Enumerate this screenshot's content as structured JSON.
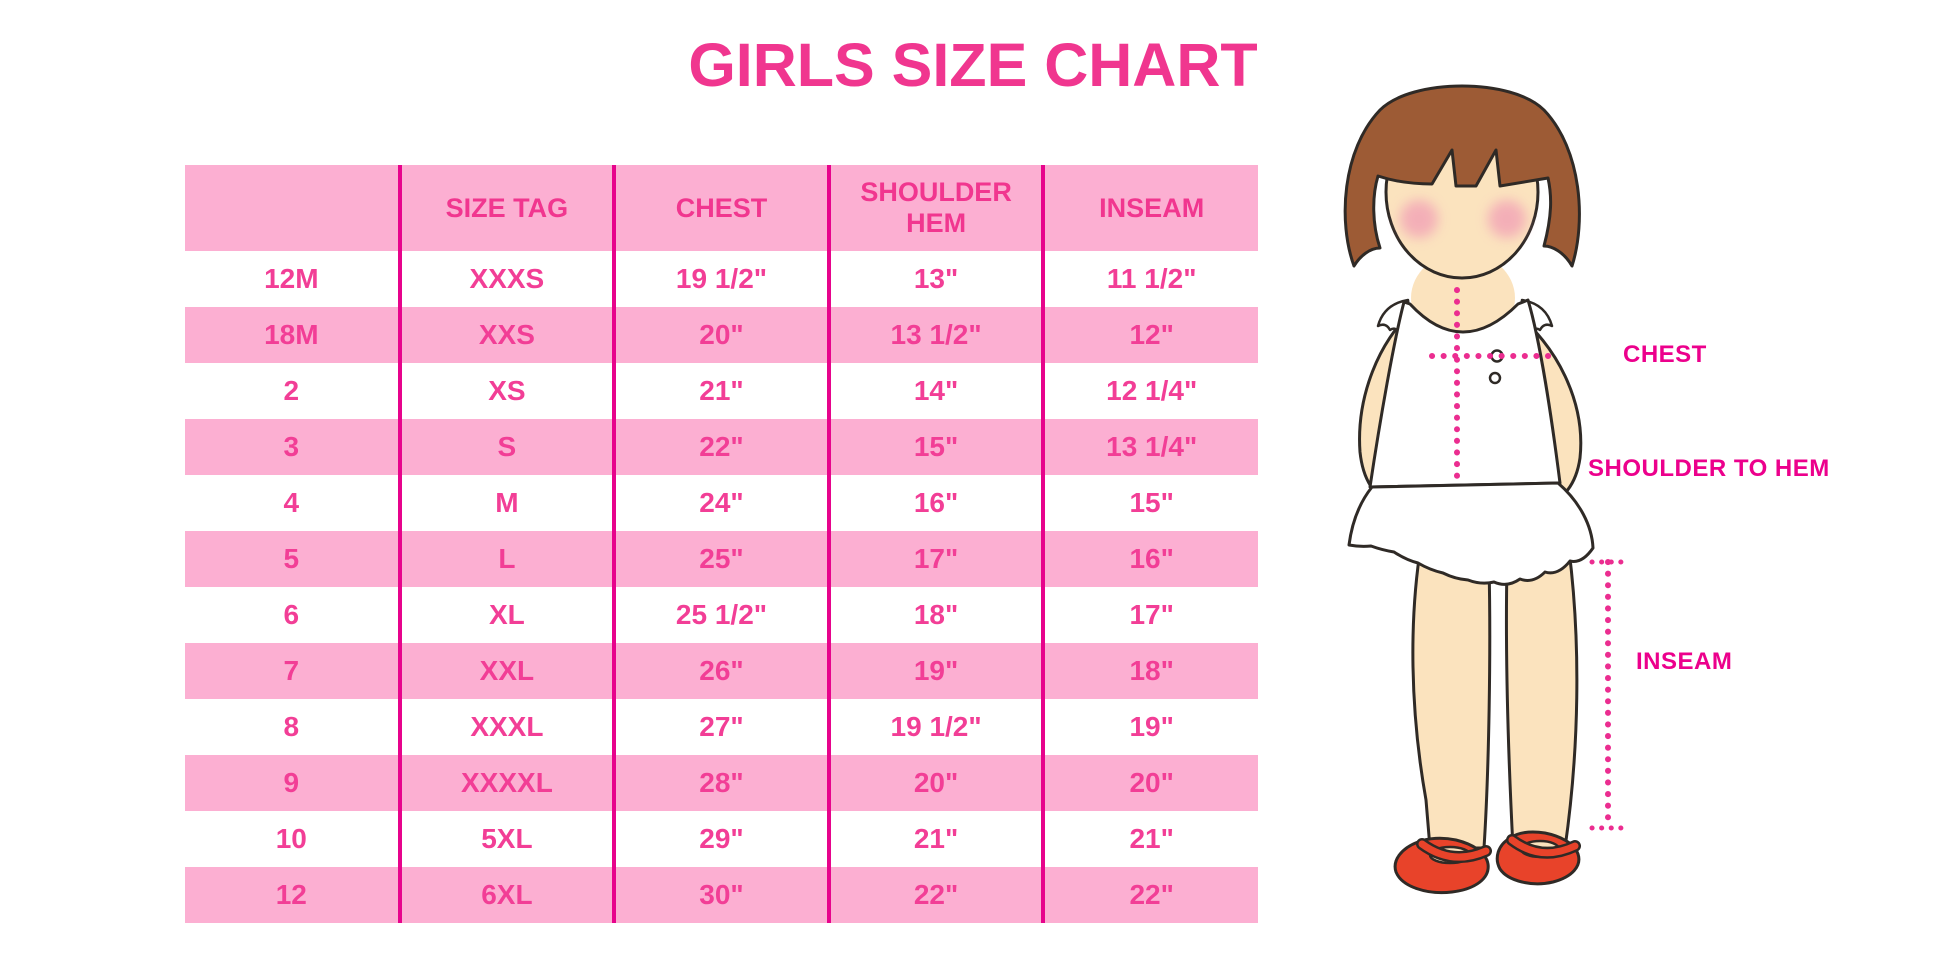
{
  "page": {
    "background": "#FFFFFF"
  },
  "chart_data": {
    "type": "table",
    "title": "GIRLS SIZE CHART",
    "columns": [
      "",
      "SIZE TAG",
      "CHEST",
      "SHOULDER HEM",
      "INSEAM"
    ],
    "rows": [
      [
        "12M",
        "XXXS",
        "19 1/2\"",
        "13\"",
        "11 1/2\""
      ],
      [
        "18M",
        "XXS",
        "20\"",
        "13 1/2\"",
        "12\""
      ],
      [
        "2",
        "XS",
        "21\"",
        "14\"",
        "12 1/4\""
      ],
      [
        "3",
        "S",
        "22\"",
        "15\"",
        "13 1/4\""
      ],
      [
        "4",
        "M",
        "24\"",
        "16\"",
        "15\""
      ],
      [
        "5",
        "L",
        "25\"",
        "17\"",
        "16\""
      ],
      [
        "6",
        "XL",
        "25 1/2\"",
        "18\"",
        "17\""
      ],
      [
        "7",
        "XXL",
        "26\"",
        "19\"",
        "18\""
      ],
      [
        "8",
        "XXXL",
        "27\"",
        "19 1/2\"",
        "19\""
      ],
      [
        "9",
        "XXXXL",
        "28\"",
        "20\"",
        "20\""
      ],
      [
        "10",
        "5XL",
        "29\"",
        "21\"",
        "21\""
      ],
      [
        "12",
        "6XL",
        "30\"",
        "22\"",
        "22\""
      ]
    ],
    "layout": {
      "row_striping": "white/pink alternating, header pink",
      "gridlines": "vertical only"
    }
  },
  "figure": {
    "description": "clipart girl with measurement guides",
    "labels": {
      "chest": "CHEST",
      "shoulder_to_hem": "SHOULDER TO HEM",
      "inseam": "INSEAM"
    }
  },
  "colors": {
    "title_pink": "#F0368F",
    "row_pink": "#FCAFD2",
    "divider_magenta": "#E7038C",
    "cell_text_pink": "#F23E96",
    "label_magenta": "#EC008C",
    "dotted_line_magenta": "#EB2D90",
    "hair_brown": "#9D5B35",
    "skin": "#FBE3BE",
    "shoe_red": "#E8432A"
  }
}
